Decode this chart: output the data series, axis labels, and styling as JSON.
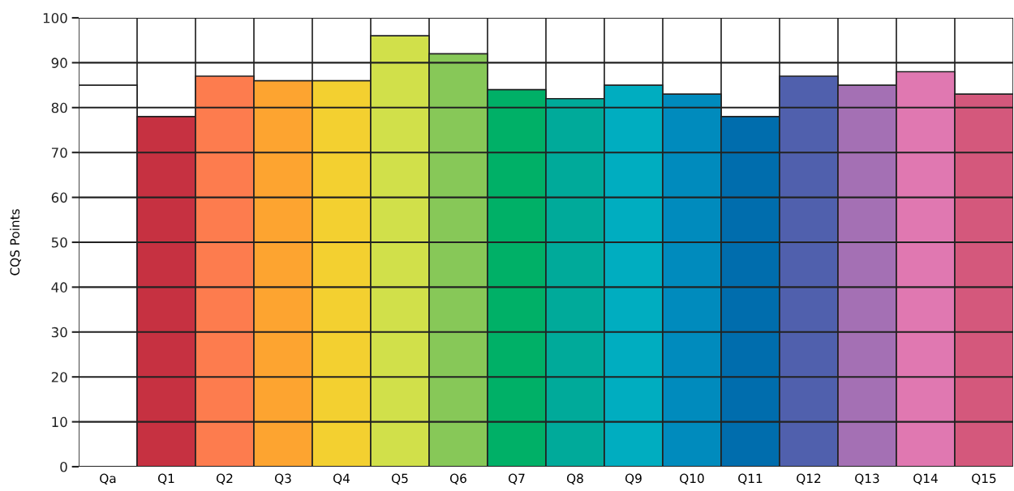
{
  "chart_data": {
    "type": "bar",
    "ylabel": "CQS Points",
    "categories": [
      "Qa",
      "Q1",
      "Q2",
      "Q3",
      "Q4",
      "Q5",
      "Q6",
      "Q7",
      "Q8",
      "Q9",
      "Q10",
      "Q11",
      "Q12",
      "Q13",
      "Q14",
      "Q15"
    ],
    "values": [
      85,
      78,
      87,
      86,
      86,
      96,
      92,
      84,
      82,
      85,
      83,
      78,
      87,
      85,
      88,
      83
    ],
    "colors": [
      "#ffffff",
      "#c63141",
      "#fd7c4e",
      "#fda430",
      "#f3d030",
      "#d1e04a",
      "#87c858",
      "#00b067",
      "#00aa9a",
      "#00adc0",
      "#008bbd",
      "#006dad",
      "#5060ad",
      "#a470b4",
      "#e078b1",
      "#d4587c"
    ],
    "ylim": [
      0,
      100
    ],
    "yticks": [
      0,
      10,
      20,
      30,
      40,
      50,
      60,
      70,
      80,
      90,
      100
    ],
    "grid": true
  }
}
